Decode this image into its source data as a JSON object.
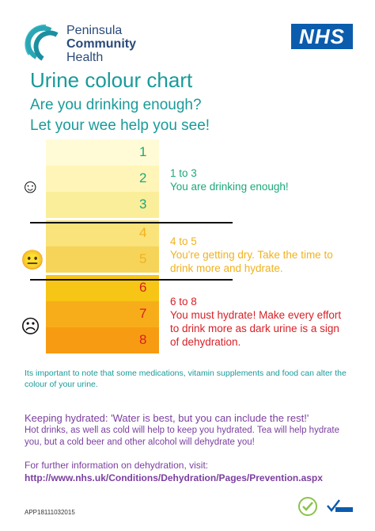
{
  "header": {
    "org_line1": "Peninsula",
    "org_line2": "Community",
    "org_line3": "Health",
    "nhs_label": "NHS"
  },
  "title": "Urine colour chart",
  "subtitle_line1": "Are you drinking enough?",
  "subtitle_line2": "Let your wee help you see!",
  "chart": {
    "levels": [
      {
        "num": "1",
        "color": "#fffbd6",
        "num_color": "#1aa97a"
      },
      {
        "num": "2",
        "color": "#fff5b8",
        "num_color": "#1aa97a"
      },
      {
        "num": "3",
        "color": "#fbee9a",
        "num_color": "#1aa97a"
      },
      {
        "num": "4",
        "color": "#f9e37a",
        "num_color": "#f1b21e"
      },
      {
        "num": "5",
        "color": "#f6d45a",
        "num_color": "#f1b21e"
      },
      {
        "num": "6",
        "color": "#f7c515",
        "num_color": "#d81f26"
      },
      {
        "num": "7",
        "color": "#f7ad1a",
        "num_color": "#d81f26"
      },
      {
        "num": "8",
        "color": "#f79c12",
        "num_color": "#d81f26"
      }
    ],
    "groups": [
      {
        "range": "1 to 3",
        "message": "You are drinking enough!",
        "color": "#1aa97a",
        "face": "☺"
      },
      {
        "range": "4 to 5",
        "message": "You're getting dry. Take the time to drink more and hydrate.",
        "color": "#f1b21e",
        "face": "😐"
      },
      {
        "range": "6 to 8",
        "message": "You must hydrate! Make every effort to drink more as dark urine is a sign of dehydration.",
        "color": "#d81f26",
        "face": "☹"
      }
    ]
  },
  "note": "Its important to note that some medications, vitamin supplements and food can alter the colour of your urine.",
  "hydration": {
    "heading": "Keeping hydrated: 'Water is best, but you can include the rest!'",
    "body": "Hot drinks, as well as cold will help to keep you hydrated. Tea will help hydrate you, but a cold beer and other alcohol will dehydrate you!"
  },
  "info_text": "For further information on dehydration, visit:",
  "url": "http://www.nhs.uk/Conditions/Dehydration/Pages/Prevention.aspx",
  "doc_code": "APP18111032015",
  "footer_logos": [
    "Mindful Employer",
    "Positive about disabled people"
  ]
}
